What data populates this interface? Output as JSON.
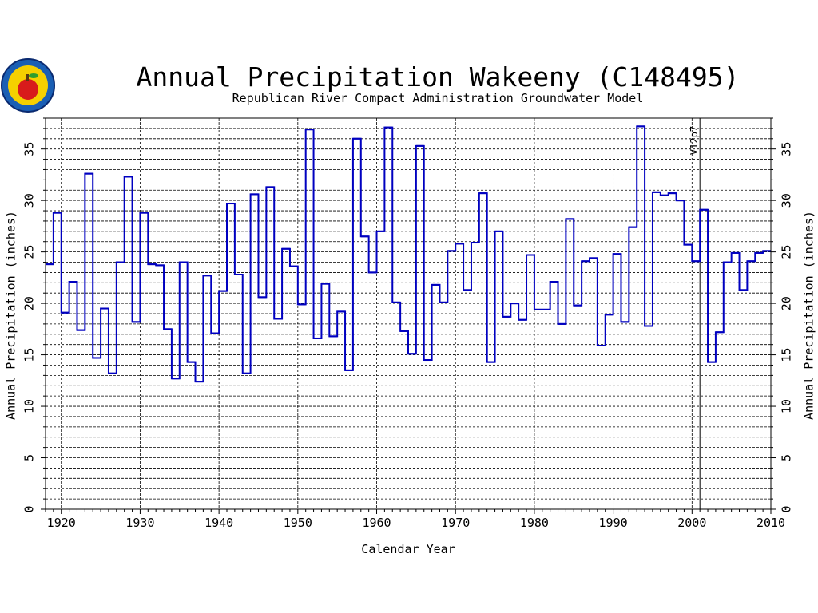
{
  "chart_data": {
    "type": "line",
    "step": true,
    "title": "Annual Precipitation Wakeeny (C148495)",
    "subtitle": "Republican River Compact Administration Groundwater Model",
    "xlabel": "Calendar Year",
    "ylabel": "Annual Precipitation (inches)",
    "ylabel_right": "Annual Precipitation (inches)",
    "xlim": [
      1918,
      2010
    ],
    "ylim": [
      0,
      38
    ],
    "xticks": [
      1920,
      1930,
      1940,
      1950,
      1960,
      1970,
      1980,
      1990,
      2000,
      2010
    ],
    "yticks": [
      0,
      5,
      10,
      15,
      20,
      25,
      30,
      35
    ],
    "grid": true,
    "annotation": {
      "text": "V12p7",
      "x": 2001
    },
    "series_color": "#0000c0",
    "x": [
      1918,
      1919,
      1920,
      1921,
      1922,
      1923,
      1924,
      1925,
      1926,
      1927,
      1928,
      1929,
      1930,
      1931,
      1932,
      1933,
      1934,
      1935,
      1936,
      1937,
      1938,
      1939,
      1940,
      1941,
      1942,
      1943,
      1944,
      1945,
      1946,
      1947,
      1948,
      1949,
      1950,
      1951,
      1952,
      1953,
      1954,
      1955,
      1956,
      1957,
      1958,
      1959,
      1960,
      1961,
      1962,
      1963,
      1964,
      1965,
      1966,
      1967,
      1968,
      1969,
      1970,
      1971,
      1972,
      1973,
      1974,
      1975,
      1976,
      1977,
      1978,
      1979,
      1980,
      1981,
      1982,
      1983,
      1984,
      1985,
      1986,
      1987,
      1988,
      1989,
      1990,
      1991,
      1992,
      1993,
      1994,
      1995,
      1996,
      1997,
      1998,
      1999,
      2000,
      2001,
      2002,
      2003,
      2004,
      2005,
      2006,
      2007,
      2008,
      2009
    ],
    "values": [
      23.8,
      28.8,
      19.1,
      22.1,
      17.4,
      32.6,
      14.7,
      19.5,
      13.2,
      24.0,
      32.3,
      18.2,
      28.8,
      23.8,
      23.7,
      17.5,
      12.7,
      24.0,
      14.3,
      12.4,
      22.7,
      17.1,
      21.2,
      29.7,
      22.8,
      13.2,
      30.6,
      20.6,
      31.3,
      18.5,
      25.3,
      23.6,
      19.9,
      36.9,
      16.6,
      21.9,
      16.8,
      19.2,
      13.5,
      36.0,
      26.5,
      23.0,
      27.0,
      37.1,
      20.1,
      17.3,
      15.1,
      35.3,
      14.5,
      21.8,
      20.1,
      25.1,
      25.8,
      21.3,
      25.9,
      30.7,
      14.3,
      27.0,
      18.7,
      20.0,
      18.4,
      24.7,
      19.4,
      19.4,
      22.1,
      18.0,
      28.2,
      19.8,
      24.1,
      24.4,
      15.9,
      18.9,
      24.8,
      18.2,
      27.4,
      37.2,
      17.8,
      30.8,
      30.5,
      30.7,
      30.0,
      25.7,
      24.1,
      29.1,
      14.3,
      17.2,
      24.0,
      24.9,
      21.3,
      24.1,
      24.9,
      25.1
    ]
  }
}
